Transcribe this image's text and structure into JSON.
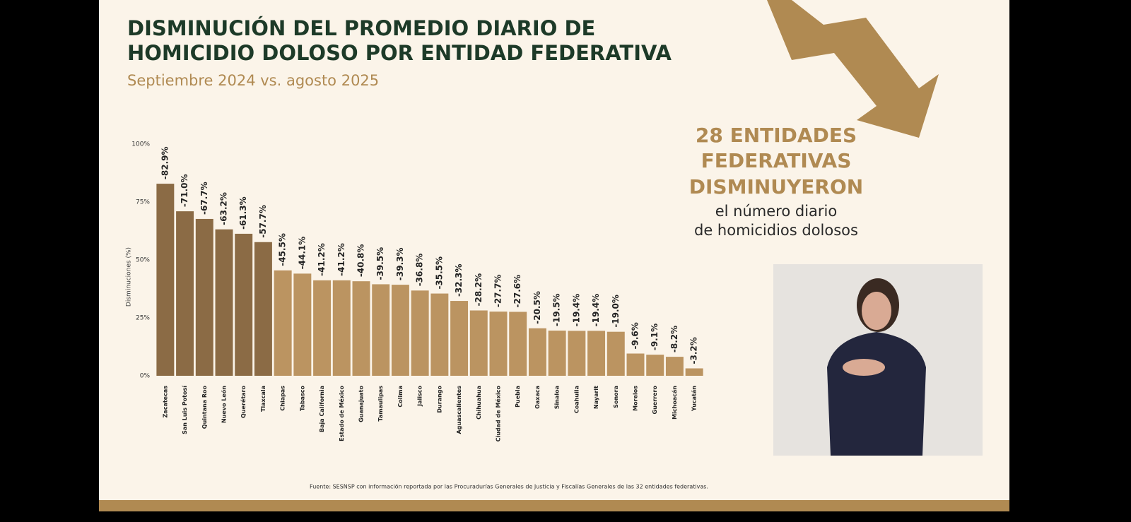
{
  "chart_data": {
    "type": "bar",
    "title_lines": [
      "DISMINUCIÓN DEL PROMEDIO DIARIO DE",
      "HOMICIDIO DOLOSO POR ENTIDAD FEDERATIVA"
    ],
    "subtitle": "Septiembre 2024 vs. agosto 2025",
    "y_label": "Disminuciones (%)",
    "categories": [
      "Zacatecas",
      "San Luis Potosí",
      "Quintana Roo",
      "Nuevo León",
      "Querétaro",
      "Tlaxcala",
      "Chiapas",
      "Tabasco",
      "Baja California",
      "Estado de México",
      "Guanajuato",
      "Tamaulipas",
      "Colima",
      "Jalisco",
      "Durango",
      "Aguascalientes",
      "Chihuahua",
      "Ciudad de México",
      "Puebla",
      "Oaxaca",
      "Sinaloa",
      "Coahuila",
      "Nayarit",
      "Sonora",
      "Morelos",
      "Guerrero",
      "Michoacán",
      "Yucatán"
    ],
    "values": [
      82.9,
      71.0,
      67.7,
      63.2,
      61.3,
      57.7,
      45.5,
      44.1,
      41.2,
      41.2,
      40.8,
      39.5,
      39.3,
      36.8,
      35.5,
      32.3,
      28.2,
      27.7,
      27.6,
      20.5,
      19.5,
      19.4,
      19.4,
      19.0,
      9.6,
      9.1,
      8.2,
      3.2
    ],
    "value_labels": [
      "-82.9%",
      "-71.0%",
      "-67.7%",
      "-63.2%",
      "-61.3%",
      "-57.7%",
      "-45.5%",
      "-44.1%",
      "-41.2%",
      "-41.2%",
      "-40.8%",
      "-39.5%",
      "-39.3%",
      "-36.8%",
      "-35.5%",
      "-32.3%",
      "-28.2%",
      "-27.7%",
      "-27.6%",
      "-20.5%",
      "-19.5%",
      "-19.4%",
      "-19.4%",
      "-19.0%",
      "-9.6%",
      "-9.1%",
      "-8.2%",
      "-3.2%"
    ],
    "colors": [
      "#8b6b45",
      "#8b6b45",
      "#8b6b45",
      "#8b6b45",
      "#8b6b45",
      "#8b6b45",
      "#bb9461",
      "#bb9461",
      "#bb9461",
      "#bb9461",
      "#bb9461",
      "#bb9461",
      "#bb9461",
      "#bb9461",
      "#bb9461",
      "#bb9461",
      "#bb9461",
      "#bb9461",
      "#bb9461",
      "#bb9461",
      "#bb9461",
      "#bb9461",
      "#bb9461",
      "#bb9461",
      "#bb9461",
      "#bb9461",
      "#bb9461",
      "#bb9461"
    ],
    "ylim": [
      0,
      100
    ],
    "yticks": [
      {
        "value": 0,
        "label": "0%"
      },
      {
        "value": 25,
        "label": "25%"
      },
      {
        "value": 50,
        "label": "50%"
      },
      {
        "value": 75,
        "label": "75%"
      },
      {
        "value": 100,
        "label": "100%"
      }
    ],
    "source": "Fuente: SESNSP con información reportada por las Procuradurías Generales de Justicia y Fiscalías Generales de las 32 entidades federativas."
  },
  "callout": {
    "headline": [
      "28 ENTIDADES",
      "FEDERATIVAS",
      "DISMINUYERON"
    ],
    "body": [
      "el número diario",
      "de homicidios dolosos"
    ]
  }
}
